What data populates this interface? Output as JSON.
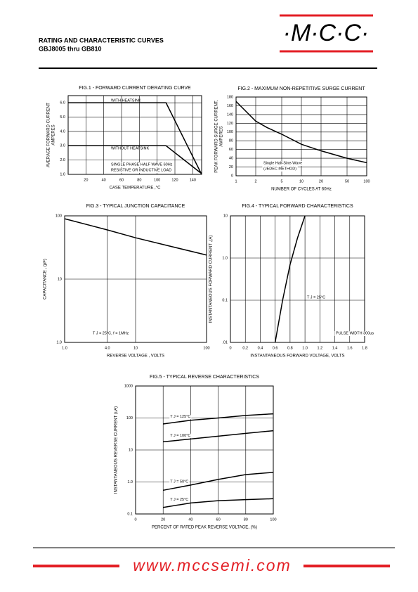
{
  "header": {
    "logo": "·M·C·C·",
    "title": "RATING AND CHARACTERISTIC CURVES",
    "parts": "GBJ8005 thru GB810"
  },
  "footer": {
    "website": "www.mccsemi.com"
  },
  "chart_data": [
    {
      "type": "line",
      "title": "FIG.1 - FORWARD CURRENT DERATING CURVE",
      "xlabel": "CASE TEMPERATURE ,°C",
      "ylabel": [
        "AVERAGE FORWARD CURRENT",
        "AMPERES"
      ],
      "xlim": [
        0,
        150
      ],
      "ylim": [
        1,
        6.5
      ],
      "xticks": [
        20,
        40,
        60,
        80,
        100,
        120,
        140
      ],
      "yticks": [
        {
          "value": 1,
          "label": "1.0"
        },
        {
          "value": 2,
          "label": "2.0"
        },
        {
          "value": 3,
          "label": "3.0"
        },
        {
          "value": 4,
          "label": "4.0"
        },
        {
          "value": 5,
          "label": "5.0"
        },
        {
          "value": 6,
          "label": "6.0"
        }
      ],
      "grid": true,
      "annotations": [
        "WITH HEATSINK",
        "WITHOUT HEATSINK",
        "SINGLE PHASE HALF WAVE 60Hz",
        "RESISTIVE OR INDUCTIVE LOAD"
      ],
      "series": [
        {
          "x": [
            0,
            110,
            150
          ],
          "values": [
            6,
            6,
            1
          ],
          "color": "#000000"
        },
        {
          "x": [
            0,
            110,
            150
          ],
          "values": [
            3,
            3,
            1.05
          ],
          "color": "#000000"
        }
      ]
    },
    {
      "type": "line",
      "title": "FIG.2 - MAXIMUM NON-REPETITIVE SURGE CURRENT",
      "xlabel": "NUMBER OF CYCLES AT 60Hz",
      "ylabel": [
        "PEAK FORWARD SURGE CURRENT,",
        "AMPERES"
      ],
      "xscale": "log",
      "xlim": [
        1,
        100
      ],
      "ylim": [
        0,
        180
      ],
      "xticks": [
        1,
        2,
        5,
        10,
        20,
        50,
        100
      ],
      "yticks": [
        0,
        20,
        40,
        60,
        80,
        100,
        120,
        140,
        160,
        180
      ],
      "grid": true,
      "annotations": [
        "Single Half-Sine-Wave",
        "(JEDEC METHOD)"
      ],
      "series": [
        {
          "x": [
            1,
            2,
            3,
            5,
            10,
            20,
            50,
            100
          ],
          "values": [
            170,
            125,
            110,
            95,
            72,
            57,
            40,
            30
          ],
          "color": "#000000"
        }
      ]
    },
    {
      "type": "line",
      "title": "FIG.3 - TYPICAL JUNCTION CAPACITANCE",
      "xlabel": "REVERSE VOLTAGE , VOLTS",
      "ylabel": [
        "CAPACITANCE , (pF)"
      ],
      "xscale": "log",
      "yscale": "log",
      "xlim": [
        1,
        100
      ],
      "ylim": [
        1,
        100
      ],
      "xticks": [
        {
          "value": 1,
          "label": "1.0"
        },
        {
          "value": 4,
          "label": "4.0"
        },
        10,
        100
      ],
      "yticks": [
        {
          "value": 1,
          "label": "1.0"
        },
        10,
        100
      ],
      "grid": true,
      "annotations": [
        "T J = 25°C,  f = 1MHz"
      ],
      "series": [
        {
          "x": [
            1,
            4,
            10,
            100
          ],
          "values": [
            90,
            60,
            45,
            24
          ],
          "color": "#000000"
        }
      ]
    },
    {
      "type": "line",
      "title": "FIG.4 - TYPICAL FORWARD CHARACTERISTICS",
      "xlabel": "INSTANTANEOUS FORWARD VOLTAGE, VOLTS",
      "ylabel": [
        "INSTANTANEOUS  FORWARD CURRENT ,(A)"
      ],
      "yscale": "log",
      "xlim": [
        0,
        1.8
      ],
      "ylim": [
        0.01,
        10
      ],
      "xticks": [
        0,
        0.2,
        0.4,
        0.6,
        0.8,
        {
          "value": 1,
          "label": "1.0"
        },
        1.2,
        1.4,
        1.6,
        1.8
      ],
      "yticks": [
        {
          "value": 0.01,
          "label": ".01"
        },
        0.1,
        {
          "value": 1,
          "label": "1.0"
        },
        10
      ],
      "grid": true,
      "annotations": [
        "T J = 25°C",
        "PULSE WIDTH 300us"
      ],
      "series": [
        {
          "x": [
            0.6,
            0.7,
            0.8,
            0.9,
            1.0
          ],
          "values": [
            0.01,
            0.1,
            0.7,
            3,
            10
          ],
          "color": "#000000"
        }
      ]
    },
    {
      "type": "line",
      "title": "FIG.5 - TYPICAL REVERSE CHARACTERISTICS",
      "xlabel": "PERCENT OF RATED PEAK REVERSE VOLTAGE, (%)",
      "ylabel": [
        "INSTANTANEOUS REVERSE CURRENT (uA)"
      ],
      "yscale": "log",
      "xlim": [
        0,
        100
      ],
      "ylim": [
        0.1,
        1000
      ],
      "xticks": [
        0,
        20,
        40,
        60,
        80,
        100
      ],
      "yticks": [
        0.1,
        {
          "value": 1,
          "label": "1.0"
        },
        10,
        100,
        1000
      ],
      "grid": true,
      "series": [
        {
          "name": "T J = 125°C",
          "x": [
            20,
            40,
            60,
            80,
            100
          ],
          "values": [
            65,
            85,
            100,
            120,
            135
          ],
          "color": "#000000"
        },
        {
          "name": "T J = 100°C",
          "x": [
            20,
            40,
            60,
            80,
            100
          ],
          "values": [
            18,
            22,
            27,
            33,
            40
          ],
          "color": "#000000"
        },
        {
          "name": "T J = 50°C",
          "x": [
            20,
            40,
            60,
            80,
            100
          ],
          "values": [
            0.55,
            0.8,
            1.2,
            1.7,
            2.0
          ],
          "color": "#000000"
        },
        {
          "name": "T J = 25°C",
          "x": [
            20,
            40,
            60,
            80,
            100
          ],
          "values": [
            0.16,
            0.22,
            0.26,
            0.28,
            0.3
          ],
          "color": "#000000"
        }
      ]
    }
  ]
}
